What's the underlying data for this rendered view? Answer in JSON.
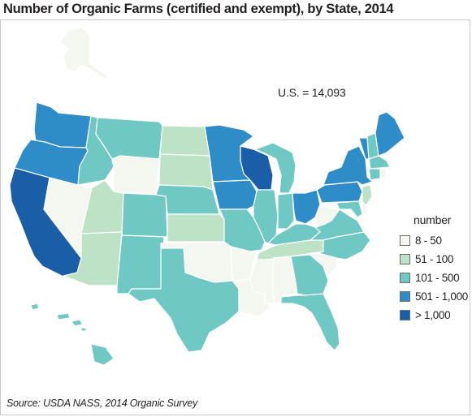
{
  "title": "Number of Organic Farms (certified and exempt), by State, 2014",
  "us_total": "U.S. = 14,093",
  "source": "Source: USDA NASS, 2014 Organic Survey",
  "legend": {
    "title": "number",
    "items": [
      {
        "key": "c1",
        "label": "8 - 50",
        "color": "#f3f7ef"
      },
      {
        "key": "c2",
        "label": "51 - 100",
        "color": "#bde2c6"
      },
      {
        "key": "c3",
        "label": "101 - 500",
        "color": "#6fc8c3"
      },
      {
        "key": "c4",
        "label": "501 - 1,000",
        "color": "#2e8cc8"
      },
      {
        "key": "c5",
        "label": "> 1,000",
        "color": "#1a5ea7"
      }
    ]
  },
  "states": {
    "AK": "c1",
    "HI": "c3",
    "WA": "c4",
    "OR": "c4",
    "CA": "c5",
    "ID": "c3",
    "NV": "c1",
    "MT": "c3",
    "WY": "c1",
    "UT": "c2",
    "AZ": "c2",
    "CO": "c3",
    "NM": "c3",
    "ND": "c2",
    "SD": "c2",
    "NE": "c3",
    "KS": "c2",
    "OK": "c1",
    "TX": "c3",
    "MN": "c4",
    "IA": "c4",
    "MO": "c3",
    "AR": "c1",
    "LA": "c1",
    "WI": "c5",
    "IL": "c3",
    "MI": "c3",
    "IN": "c3",
    "OH": "c4",
    "KY": "c3",
    "TN": "c2",
    "MS": "c1",
    "AL": "c1",
    "GA": "c3",
    "FL": "c3",
    "SC": "c1",
    "NC": "c3",
    "VA": "c3",
    "WV": "c1",
    "PA": "c4",
    "NY": "c4",
    "VT": "c4",
    "NH": "c3",
    "ME": "c4",
    "MA": "c3",
    "CT": "c3",
    "RI": "c1",
    "NJ": "c2",
    "DE": "c1",
    "MD": "c3"
  }
}
